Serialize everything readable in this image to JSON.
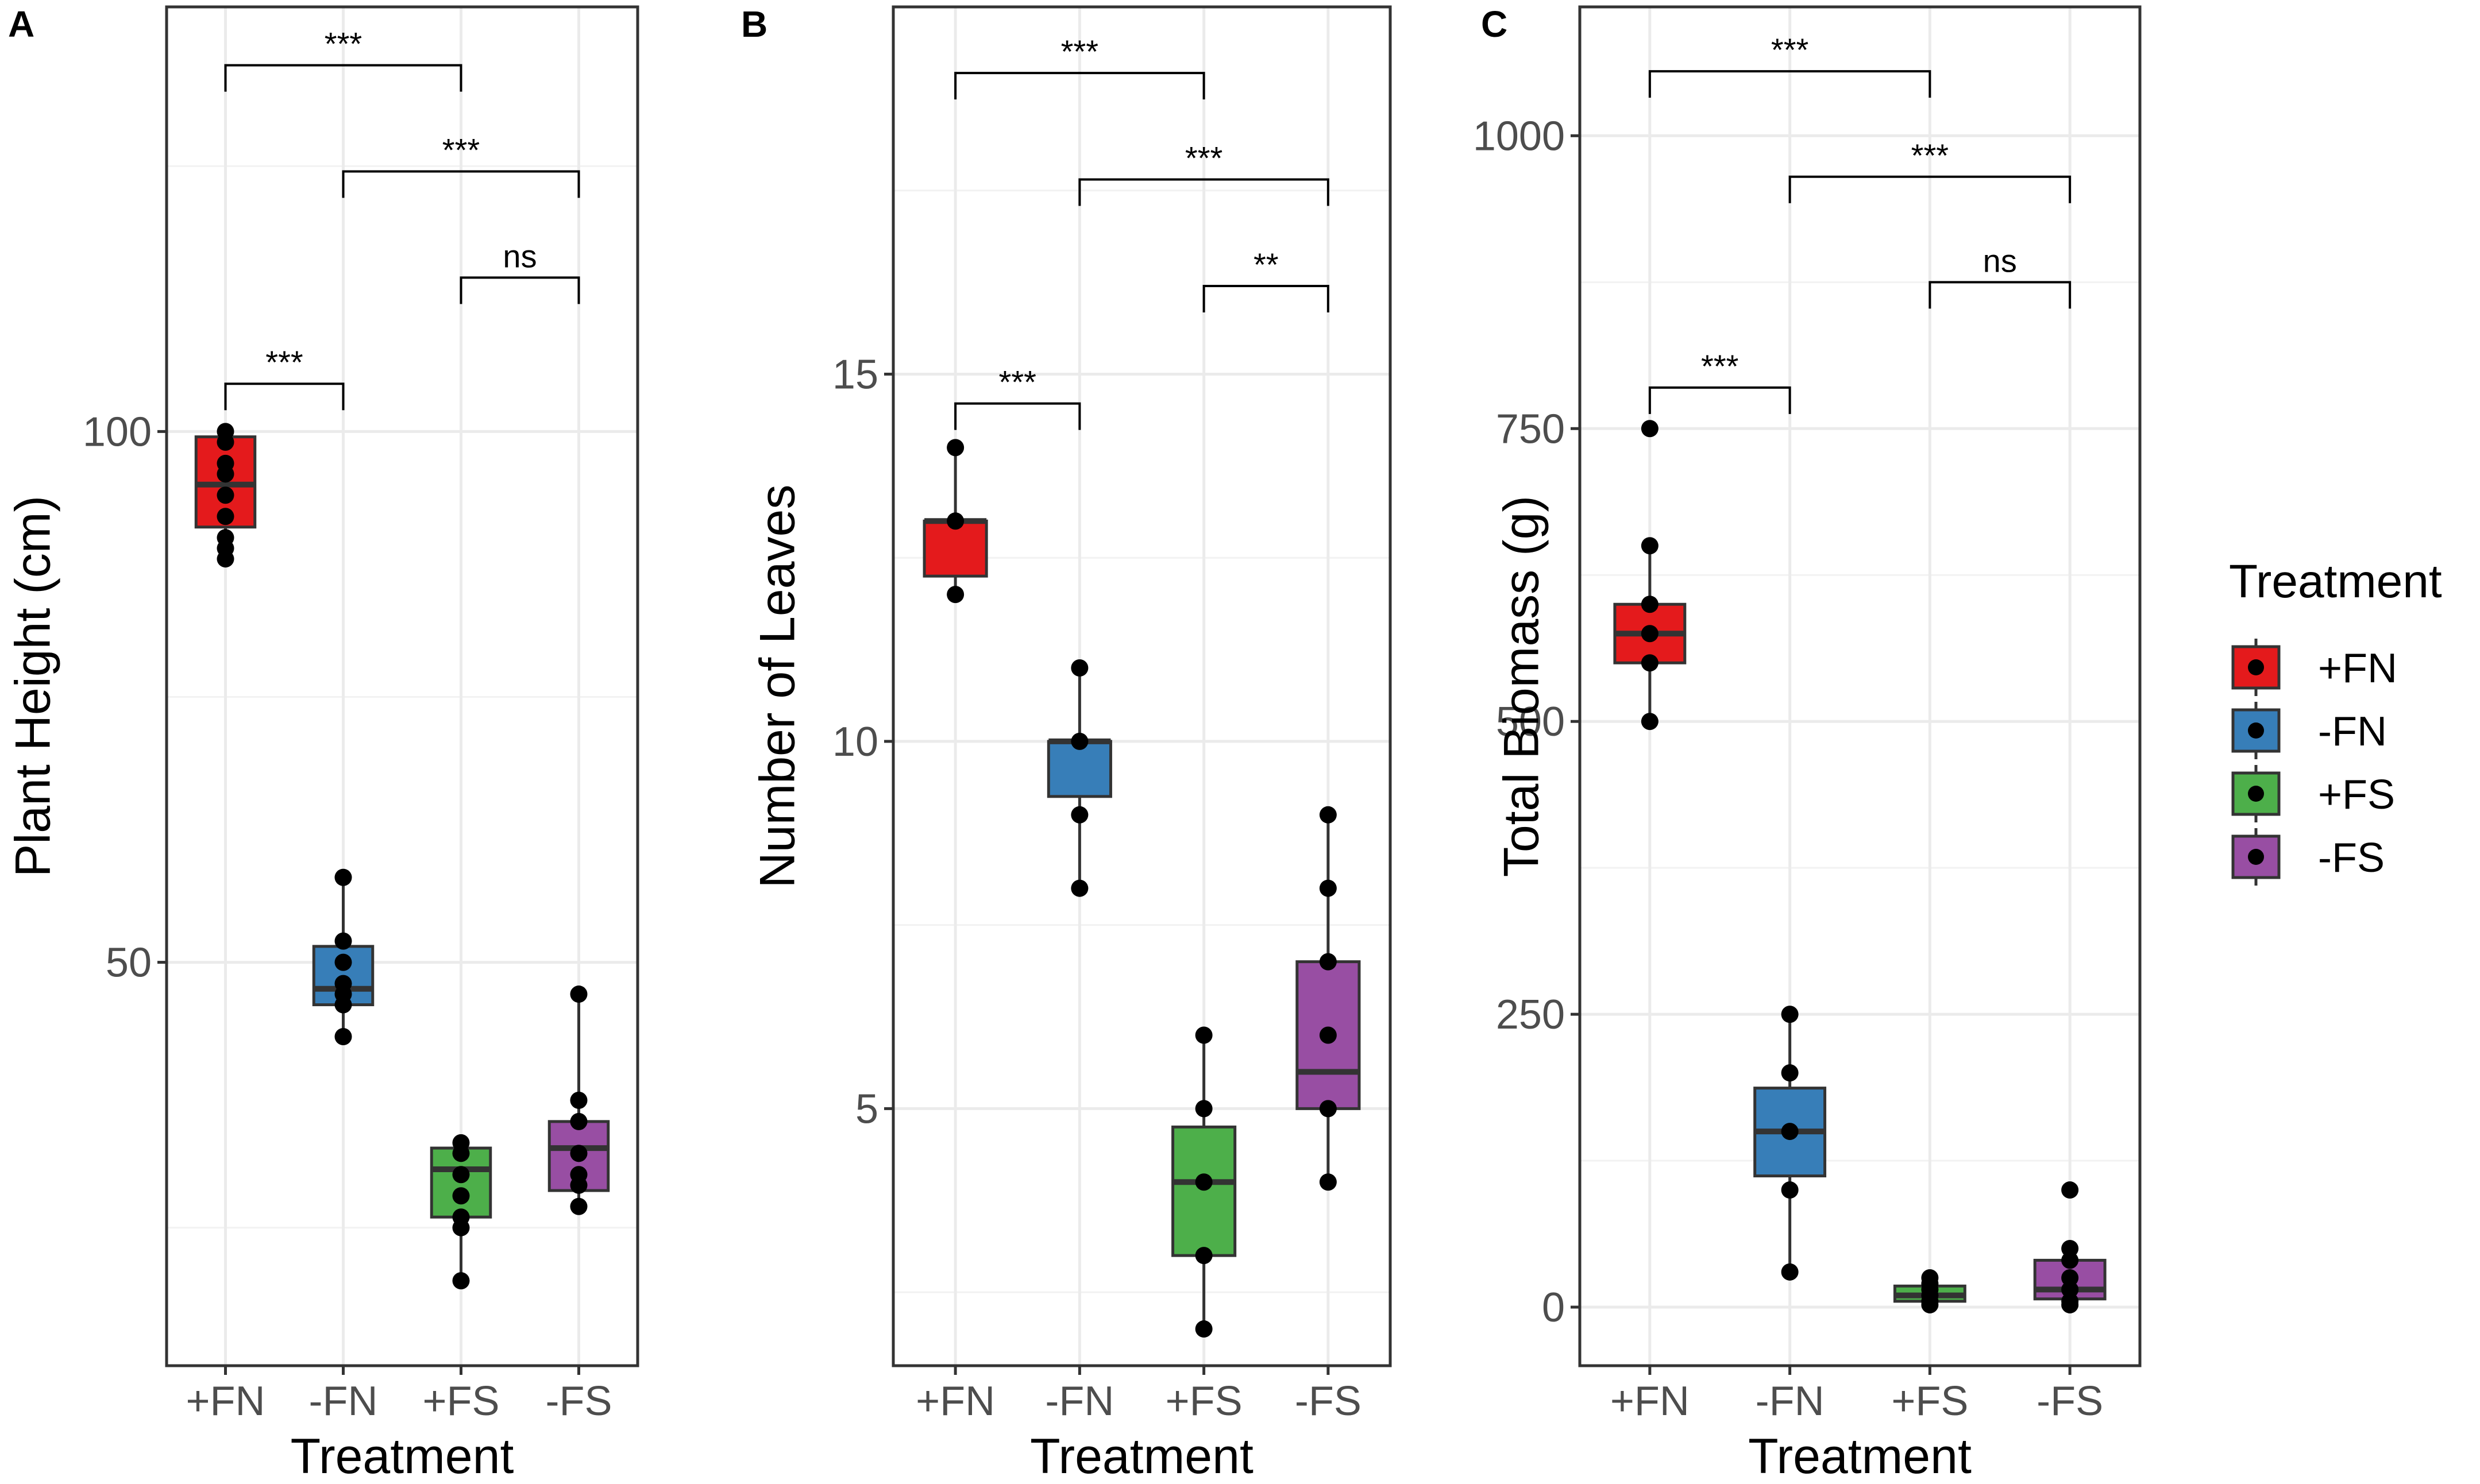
{
  "legend": {
    "title": "Treatment",
    "items": [
      {
        "label": "+FN",
        "color": "#E41A1C"
      },
      {
        "label": "-FN",
        "color": "#377EB8"
      },
      {
        "label": "+FS",
        "color": "#4DAF4A"
      },
      {
        "label": "-FS",
        "color": "#984EA3"
      }
    ]
  },
  "chart_data": [
    {
      "type": "box",
      "panel_label": "A",
      "title": "",
      "xlabel": "Treatment",
      "ylabel": "Plant Height (cm)",
      "categories": [
        "+FN",
        "-FN",
        "+FS",
        "-FS"
      ],
      "colors": [
        "#E41A1C",
        "#377EB8",
        "#4DAF4A",
        "#984EA3"
      ],
      "ylim": [
        12,
        140
      ],
      "yticks": [
        50,
        100
      ],
      "ytick_labels": [
        "50",
        "100"
      ],
      "minor_yticks": [
        25,
        75,
        125
      ],
      "grid": true,
      "boxes": [
        {
          "min": 88,
          "q1": 91,
          "median": 95,
          "q3": 99.5,
          "max": 100
        },
        {
          "min": 43,
          "q1": 46,
          "median": 47.5,
          "q3": 51.5,
          "max": 58
        },
        {
          "min": 20,
          "q1": 26,
          "median": 30.5,
          "q3": 32.5,
          "max": 33
        },
        {
          "min": 27,
          "q1": 28.5,
          "median": 32.5,
          "q3": 35,
          "max": 47
        }
      ],
      "points": [
        [
          100,
          99,
          97,
          96,
          94,
          92,
          90,
          89,
          88
        ],
        [
          58,
          52,
          50,
          48,
          47,
          46,
          43
        ],
        [
          33,
          32,
          30,
          28,
          26,
          25,
          20
        ],
        [
          47,
          37,
          35,
          32,
          30,
          29,
          27
        ]
      ],
      "comparisons": [
        {
          "from": 0,
          "to": 2,
          "y": 134.5,
          "label": "***"
        },
        {
          "from": 1,
          "to": 3,
          "y": 124.5,
          "label": "***"
        },
        {
          "from": 2,
          "to": 3,
          "y": 114.5,
          "label": "ns"
        },
        {
          "from": 0,
          "to": 1,
          "y": 104.5,
          "label": "***"
        }
      ]
    },
    {
      "type": "box",
      "panel_label": "B",
      "title": "",
      "xlabel": "Treatment",
      "ylabel": "Number of Leaves",
      "categories": [
        "+FN",
        "-FN",
        "+FS",
        "-FS"
      ],
      "colors": [
        "#E41A1C",
        "#377EB8",
        "#4DAF4A",
        "#984EA3"
      ],
      "ylim": [
        1.5,
        20
      ],
      "yticks": [
        5,
        10,
        15
      ],
      "ytick_labels": [
        "5",
        "10",
        "15"
      ],
      "minor_yticks": [
        2.5,
        7.5,
        12.5,
        17.5
      ],
      "grid": true,
      "boxes": [
        {
          "min": 12,
          "q1": 12.25,
          "median": 13,
          "q3": 13,
          "max": 14
        },
        {
          "min": 8,
          "q1": 9.25,
          "median": 10,
          "q3": 10,
          "max": 11
        },
        {
          "min": 2,
          "q1": 3,
          "median": 4,
          "q3": 4.75,
          "max": 6
        },
        {
          "min": 4,
          "q1": 5,
          "median": 5.5,
          "q3": 7,
          "max": 9
        }
      ],
      "points": [
        [
          14,
          13,
          12
        ],
        [
          11,
          10,
          9,
          8
        ],
        [
          6,
          5,
          4,
          3,
          2
        ],
        [
          9,
          8,
          7,
          6,
          5,
          4
        ]
      ],
      "comparisons": [
        {
          "from": 0,
          "to": 2,
          "y": 19.1,
          "label": "***"
        },
        {
          "from": 1,
          "to": 3,
          "y": 17.65,
          "label": "***"
        },
        {
          "from": 2,
          "to": 3,
          "y": 16.2,
          "label": "**"
        },
        {
          "from": 0,
          "to": 1,
          "y": 14.6,
          "label": "***"
        }
      ]
    },
    {
      "type": "box",
      "panel_label": "C",
      "title": "",
      "xlabel": "Treatment",
      "ylabel": "Total Biomass (g)",
      "categories": [
        "+FN",
        "-FN",
        "+FS",
        "-FS"
      ],
      "colors": [
        "#E41A1C",
        "#377EB8",
        "#4DAF4A",
        "#984EA3"
      ],
      "ylim": [
        -50,
        1110
      ],
      "yticks": [
        0,
        250,
        500,
        750,
        1000
      ],
      "ytick_labels": [
        "0",
        "250",
        "500",
        "750",
        "1000"
      ],
      "minor_yticks": [
        125,
        375,
        625,
        875
      ],
      "grid": true,
      "boxes": [
        {
          "min": 500,
          "q1": 550,
          "median": 575,
          "q3": 600,
          "max": 650
        },
        {
          "min": 30,
          "q1": 112,
          "median": 150,
          "q3": 187,
          "max": 250
        },
        {
          "min": 2,
          "q1": 5,
          "median": 10,
          "q3": 18,
          "max": 25
        },
        {
          "min": 2,
          "q1": 7,
          "median": 15,
          "q3": 40,
          "max": 50
        }
      ],
      "points": [
        [
          750,
          650,
          600,
          575,
          550,
          500
        ],
        [
          250,
          200,
          150,
          100,
          30
        ],
        [
          25,
          20,
          15,
          10,
          5,
          2
        ],
        [
          100,
          50,
          40,
          25,
          15,
          5,
          2
        ]
      ],
      "comparisons": [
        {
          "from": 0,
          "to": 2,
          "y": 1055,
          "label": "***"
        },
        {
          "from": 1,
          "to": 3,
          "y": 965,
          "label": "***"
        },
        {
          "from": 2,
          "to": 3,
          "y": 875,
          "label": "ns"
        },
        {
          "from": 0,
          "to": 1,
          "y": 785,
          "label": "***"
        }
      ]
    }
  ]
}
